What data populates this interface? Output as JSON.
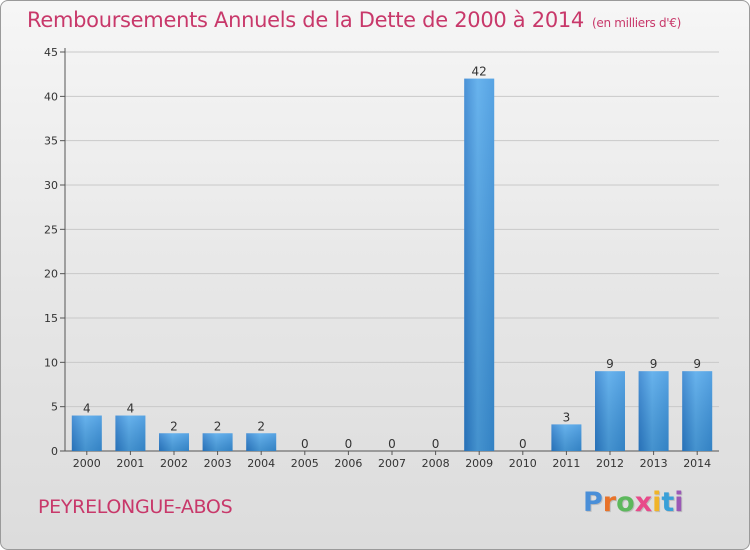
{
  "title": "Remboursements Annuels de la Dette de 2000 à 2014",
  "unit": "(en milliers d'€)",
  "commune": "PEYRELONGUE-ABOS",
  "logo": {
    "text": "Proxiti",
    "letter_colors": [
      "#4a8fd8",
      "#e8732a",
      "#5cb85c",
      "#e84a8a",
      "#f0b429",
      "#3aa0d8",
      "#9b59b6"
    ]
  },
  "chart_data": {
    "type": "bar",
    "title": "Remboursements Annuels de la Dette de 2000 à 2014",
    "xlabel": "",
    "ylabel": "",
    "categories": [
      "2000",
      "2001",
      "2002",
      "2003",
      "2004",
      "2005",
      "2006",
      "2007",
      "2008",
      "2009",
      "2010",
      "2011",
      "2012",
      "2013",
      "2014"
    ],
    "values": [
      4,
      4,
      2,
      2,
      2,
      0,
      0,
      0,
      0,
      42,
      0,
      3,
      9,
      9,
      9
    ],
    "ylim": [
      0,
      45
    ],
    "yticks": [
      0,
      5,
      10,
      15,
      20,
      25,
      30,
      35,
      40,
      45
    ],
    "grid": "horizontal",
    "bar_color": "#3a8fd6",
    "bar_color_light": "#5db0ec"
  }
}
